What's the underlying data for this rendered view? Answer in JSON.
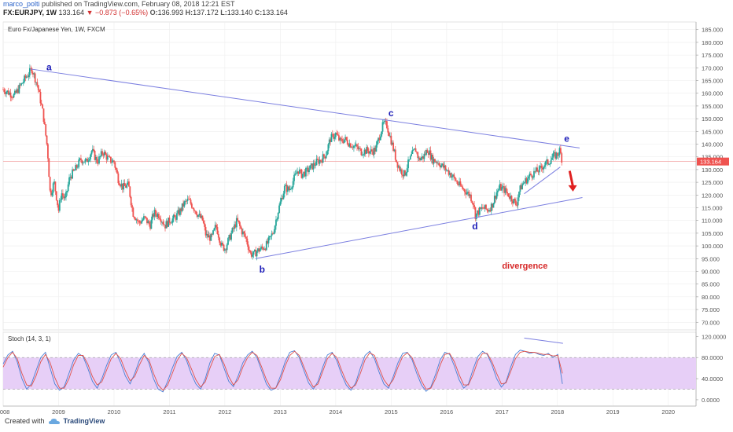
{
  "header": {
    "author": "marco_polti",
    "published_text": "published on TradingView.com, February 08, 2018 12:21 EST",
    "symbol": "FX:EURJPY, 1W",
    "price": "133.164",
    "change": "−0.873 (−0.65%)",
    "o_label": "O:",
    "o_value": "136.993",
    "h_label": "H:",
    "h_value": "137.172",
    "l_label": "L:",
    "l_value": "133.140",
    "c_label": "C:",
    "c_value": "133.164"
  },
  "footer": {
    "created_with": "Created with",
    "brand": "TradingView",
    "icon": "tradingview-cloud-icon"
  },
  "colors": {
    "up": "#26a69a",
    "down": "#ef5350",
    "trendline": "#7b7fe0",
    "annotation": "#1c1cb8",
    "divergence": "#d62828",
    "stoch_band": "#e7cff7",
    "k_line": "#4a7fd4",
    "d_line": "#e0524c",
    "price_badge": "#ef5350"
  },
  "chart_data": [
    {
      "type": "candlestick",
      "title": "Euro Fx/Japanese Yen, 1W, FXCM",
      "x_ticks": [
        "2008",
        "2009",
        "2010",
        "2011",
        "2012",
        "2013",
        "2014",
        "2015",
        "2016",
        "2017",
        "2018",
        "2019",
        "2020"
      ],
      "y_ticks": [
        "70.000",
        "75.000",
        "80.000",
        "85.000",
        "90.000",
        "95.000",
        "100.000",
        "105.000",
        "110.000",
        "115.000",
        "120.000",
        "125.000",
        "130.000",
        "135.000",
        "140.000",
        "145.000",
        "150.000",
        "155.000",
        "160.000",
        "165.000",
        "170.000",
        "175.000",
        "180.000",
        "185.000"
      ],
      "ylim": [
        67,
        188
      ],
      "xlim": [
        2008.0,
        2020.5
      ],
      "current_price": 133.164,
      "current_price_label": "133.164",
      "price_path": [
        [
          2008.0,
          161.5
        ],
        [
          2008.2,
          159
        ],
        [
          2008.4,
          166
        ],
        [
          2008.52,
          169.5
        ],
        [
          2008.62,
          163
        ],
        [
          2008.72,
          152
        ],
        [
          2008.8,
          138
        ],
        [
          2008.85,
          120
        ],
        [
          2008.92,
          125
        ],
        [
          2009.0,
          114
        ],
        [
          2009.05,
          121
        ],
        [
          2009.12,
          118
        ],
        [
          2009.2,
          127
        ],
        [
          2009.3,
          130
        ],
        [
          2009.4,
          134
        ],
        [
          2009.5,
          133
        ],
        [
          2009.6,
          137.5
        ],
        [
          2009.7,
          133
        ],
        [
          2009.8,
          137
        ],
        [
          2009.9,
          134
        ],
        [
          2010.0,
          133
        ],
        [
          2010.08,
          126
        ],
        [
          2010.16,
          123
        ],
        [
          2010.26,
          124
        ],
        [
          2010.34,
          113
        ],
        [
          2010.45,
          109
        ],
        [
          2010.55,
          111
        ],
        [
          2010.65,
          108
        ],
        [
          2010.72,
          113
        ],
        [
          2010.82,
          112
        ],
        [
          2010.92,
          108
        ],
        [
          2011.0,
          110
        ],
        [
          2011.1,
          111
        ],
        [
          2011.2,
          114
        ],
        [
          2011.26,
          116.5
        ],
        [
          2011.34,
          118
        ],
        [
          2011.44,
          115
        ],
        [
          2011.52,
          112
        ],
        [
          2011.6,
          110
        ],
        [
          2011.66,
          104
        ],
        [
          2011.76,
          103
        ],
        [
          2011.84,
          108
        ],
        [
          2011.94,
          100
        ],
        [
          2012.0,
          99
        ],
        [
          2012.08,
          103
        ],
        [
          2012.16,
          107
        ],
        [
          2012.22,
          110
        ],
        [
          2012.3,
          106
        ],
        [
          2012.38,
          103
        ],
        [
          2012.46,
          97
        ],
        [
          2012.52,
          96.5
        ],
        [
          2012.58,
          98
        ],
        [
          2012.66,
          99
        ],
        [
          2012.74,
          100
        ],
        [
          2012.82,
          103
        ],
        [
          2012.88,
          106
        ],
        [
          2012.94,
          112
        ],
        [
          2013.0,
          117
        ],
        [
          2013.08,
          123
        ],
        [
          2013.16,
          122
        ],
        [
          2013.24,
          126
        ],
        [
          2013.32,
          130
        ],
        [
          2013.38,
          128
        ],
        [
          2013.46,
          129
        ],
        [
          2013.56,
          131
        ],
        [
          2013.66,
          133
        ],
        [
          2013.74,
          134
        ],
        [
          2013.82,
          136
        ],
        [
          2013.9,
          142
        ],
        [
          2014.0,
          144
        ],
        [
          2014.08,
          141
        ],
        [
          2014.16,
          142
        ],
        [
          2014.26,
          140
        ],
        [
          2014.36,
          139
        ],
        [
          2014.46,
          137
        ],
        [
          2014.56,
          137.5
        ],
        [
          2014.64,
          137
        ],
        [
          2014.72,
          138
        ],
        [
          2014.8,
          144
        ],
        [
          2014.86,
          148
        ],
        [
          2014.92,
          147.5
        ],
        [
          2014.98,
          143
        ],
        [
          2015.04,
          138
        ],
        [
          2015.1,
          133
        ],
        [
          2015.16,
          130
        ],
        [
          2015.24,
          128
        ],
        [
          2015.3,
          132
        ],
        [
          2015.38,
          136
        ],
        [
          2015.44,
          138
        ],
        [
          2015.5,
          134
        ],
        [
          2015.58,
          135
        ],
        [
          2015.66,
          138
        ],
        [
          2015.74,
          134
        ],
        [
          2015.84,
          133
        ],
        [
          2015.94,
          131
        ],
        [
          2016.04,
          129
        ],
        [
          2016.12,
          127
        ],
        [
          2016.22,
          124
        ],
        [
          2016.32,
          122
        ],
        [
          2016.42,
          120
        ],
        [
          2016.48,
          117
        ],
        [
          2016.52,
          112
        ],
        [
          2016.58,
          113.5
        ],
        [
          2016.66,
          115
        ],
        [
          2016.74,
          114
        ],
        [
          2016.82,
          116
        ],
        [
          2016.9,
          121
        ],
        [
          2016.96,
          123
        ],
        [
          2017.04,
          122
        ],
        [
          2017.12,
          120
        ],
        [
          2017.2,
          118
        ],
        [
          2017.26,
          116
        ],
        [
          2017.3,
          121
        ],
        [
          2017.36,
          124
        ],
        [
          2017.44,
          126
        ],
        [
          2017.52,
          128
        ],
        [
          2017.6,
          129
        ],
        [
          2017.68,
          130
        ],
        [
          2017.76,
          132
        ],
        [
          2017.84,
          133
        ],
        [
          2017.92,
          135
        ],
        [
          2018.0,
          136
        ],
        [
          2018.04,
          137.5
        ],
        [
          2018.09,
          133.2
        ]
      ],
      "trendlines": [
        {
          "from": [
            2008.5,
            169.5
          ],
          "to": [
            2018.4,
            138.5
          ]
        },
        {
          "from": [
            2012.55,
            95
          ],
          "to": [
            2018.45,
            119
          ]
        },
        {
          "from": [
            2017.4,
            120.5
          ],
          "to": [
            2018.05,
            131
          ]
        }
      ],
      "annotations": [
        {
          "text": "a",
          "x": 2008.78,
          "y": 169
        },
        {
          "text": "b",
          "x": 2012.62,
          "y": 89.5
        },
        {
          "text": "c",
          "x": 2014.95,
          "y": 151
        },
        {
          "text": "d",
          "x": 2016.46,
          "y": 106.5
        },
        {
          "text": "e",
          "x": 2018.12,
          "y": 141
        },
        {
          "text": "divergence",
          "x": 2017.0,
          "y": 91
        }
      ],
      "arrow": {
        "from": [
          2018.22,
          129.5
        ],
        "to": [
          2018.28,
          122
        ]
      }
    },
    {
      "type": "line",
      "title": "Stoch (14, 3, 1)",
      "y_ticks": [
        "0.0000",
        "40.0000",
        "80.0000",
        "120.0000"
      ],
      "ylim": [
        -12,
        128
      ],
      "band": [
        20,
        80
      ],
      "series": [
        {
          "key": "k",
          "values": [
            68,
            85,
            92,
            72,
            40,
            20,
            30,
            55,
            80,
            90,
            60,
            30,
            18,
            25,
            50,
            75,
            88,
            82,
            60,
            35,
            22,
            40,
            65,
            85,
            90,
            70,
            45,
            30,
            50,
            75,
            88,
            70,
            40,
            20,
            15,
            35,
            60,
            82,
            90,
            75,
            50,
            30,
            20,
            40,
            70,
            88,
            85,
            60,
            35,
            25,
            45,
            70,
            85,
            92,
            80,
            55,
            30,
            18,
            22,
            45,
            72,
            90,
            93,
            80,
            55,
            32,
            20,
            35,
            62,
            85,
            90,
            74,
            48,
            28,
            18,
            32,
            60,
            84,
            92,
            78,
            52,
            30,
            22,
            44,
            70,
            88,
            90,
            76,
            50,
            28,
            16,
            24,
            48,
            76,
            90,
            86,
            64,
            38,
            22,
            30,
            58,
            82,
            92,
            86,
            66,
            40,
            24,
            34,
            62,
            86,
            94,
            92,
            88,
            90,
            86,
            84,
            88,
            80,
            86,
            30
          ]
        },
        {
          "key": "d",
          "values": [
            62,
            80,
            90,
            78,
            50,
            28,
            26,
            45,
            72,
            86,
            70,
            42,
            22,
            22,
            40,
            66,
            84,
            84,
            68,
            44,
            28,
            34,
            56,
            78,
            88,
            78,
            55,
            36,
            44,
            66,
            84,
            76,
            50,
            28,
            18,
            28,
            50,
            74,
            88,
            80,
            60,
            38,
            24,
            34,
            60,
            82,
            86,
            68,
            44,
            28,
            38,
            62,
            80,
            90,
            84,
            62,
            38,
            22,
            22,
            38,
            64,
            84,
            92,
            84,
            62,
            40,
            24,
            30,
            54,
            78,
            88,
            80,
            56,
            35,
            22,
            28,
            50,
            76,
            89,
            84,
            60,
            38,
            26,
            38,
            62,
            82,
            89,
            80,
            58,
            36,
            20,
            22,
            40,
            66,
            86,
            88,
            72,
            48,
            28,
            28,
            48,
            74,
            88,
            88,
            72,
            50,
            30,
            32,
            54,
            78,
            90,
            92,
            90,
            90,
            88,
            86,
            86,
            83,
            84,
            50
          ]
        }
      ],
      "trendline": {
        "from": [
          2017.4,
          117
        ],
        "to": [
          2018.1,
          107
        ]
      }
    }
  ]
}
